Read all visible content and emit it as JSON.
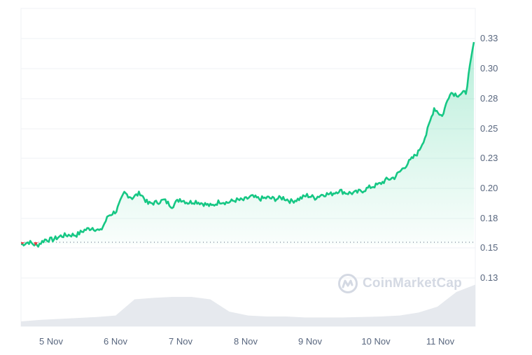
{
  "chart_data": {
    "type": "area",
    "title": "",
    "xlabel": "",
    "ylabel": "",
    "ylim": [
      0.12,
      0.34
    ],
    "grid": true,
    "legend": null,
    "x_ticks": [
      "5 Nov",
      "6 Nov",
      "7 Nov",
      "8 Nov",
      "9 Nov",
      "10 Nov",
      "11 Nov"
    ],
    "y_ticks": [
      "0.33",
      "0.30",
      "0.28",
      "0.25",
      "0.23",
      "0.20",
      "0.18",
      "0.15",
      "0.13"
    ],
    "baseline": 0.158,
    "series": [
      {
        "name": "Price",
        "color": "#16c784",
        "below_baseline_color": "#ea3943",
        "x": [
          "4 Nov 12:00",
          "4 Nov 15:00",
          "4 Nov 18:00",
          "4 Nov 21:00",
          "5 Nov 00:00",
          "5 Nov 03:00",
          "5 Nov 06:00",
          "5 Nov 09:00",
          "5 Nov 12:00",
          "5 Nov 15:00",
          "5 Nov 18:00",
          "5 Nov 21:00",
          "6 Nov 00:00",
          "6 Nov 03:00",
          "6 Nov 06:00",
          "6 Nov 09:00",
          "6 Nov 12:00",
          "6 Nov 15:00",
          "6 Nov 18:00",
          "6 Nov 21:00",
          "7 Nov 00:00",
          "7 Nov 03:00",
          "7 Nov 06:00",
          "7 Nov 09:00",
          "7 Nov 12:00",
          "7 Nov 15:00",
          "7 Nov 18:00",
          "7 Nov 21:00",
          "8 Nov 00:00",
          "8 Nov 03:00",
          "8 Nov 06:00",
          "8 Nov 09:00",
          "8 Nov 12:00",
          "8 Nov 15:00",
          "8 Nov 18:00",
          "8 Nov 21:00",
          "9 Nov 00:00",
          "9 Nov 03:00",
          "9 Nov 06:00",
          "9 Nov 09:00",
          "9 Nov 12:00",
          "9 Nov 15:00",
          "9 Nov 18:00",
          "9 Nov 21:00",
          "10 Nov 00:00",
          "10 Nov 03:00",
          "10 Nov 06:00",
          "10 Nov 09:00",
          "10 Nov 12:00",
          "10 Nov 15:00",
          "10 Nov 18:00",
          "10 Nov 21:00",
          "11 Nov 00:00",
          "11 Nov 03:00",
          "11 Nov 06:00",
          "11 Nov 09:00",
          "11 Nov 12:00",
          "11 Nov 15:00"
        ],
        "values": [
          0.158,
          0.16,
          0.157,
          0.162,
          0.162,
          0.165,
          0.166,
          0.166,
          0.17,
          0.172,
          0.169,
          0.182,
          0.186,
          0.201,
          0.197,
          0.201,
          0.192,
          0.193,
          0.195,
          0.19,
          0.196,
          0.193,
          0.194,
          0.192,
          0.19,
          0.194,
          0.193,
          0.195,
          0.195,
          0.198,
          0.196,
          0.197,
          0.196,
          0.197,
          0.194,
          0.196,
          0.199,
          0.197,
          0.2,
          0.2,
          0.203,
          0.201,
          0.201,
          0.203,
          0.206,
          0.208,
          0.212,
          0.214,
          0.221,
          0.228,
          0.235,
          0.25,
          0.272,
          0.265,
          0.285,
          0.283,
          0.285,
          0.327
        ]
      },
      {
        "name": "Volume",
        "color": "#e6e9ee",
        "relative_values": [
          0.1,
          0.13,
          0.15,
          0.17,
          0.19,
          0.22,
          0.55,
          0.58,
          0.6,
          0.6,
          0.55,
          0.3,
          0.22,
          0.2,
          0.2,
          0.18,
          0.18,
          0.18,
          0.19,
          0.2,
          0.22,
          0.28,
          0.4,
          0.7,
          0.85
        ]
      }
    ]
  },
  "axis": {
    "y_labels": [
      "0.33",
      "0.30",
      "0.28",
      "0.25",
      "0.23",
      "0.20",
      "0.18",
      "0.15",
      "0.13"
    ],
    "x_labels": [
      "5 Nov",
      "6 Nov",
      "7 Nov",
      "8 Nov",
      "9 Nov",
      "10 Nov",
      "11 Nov"
    ]
  },
  "watermark": {
    "text": "CoinMarketCap",
    "icon": "coinmarketcap-logo-icon"
  },
  "colors": {
    "up": "#16c784",
    "down": "#ea3943",
    "grid": "#eff2f5",
    "axis_text": "#58667e",
    "volume": "#e6e9ee",
    "watermark": "#d4d9e3"
  }
}
